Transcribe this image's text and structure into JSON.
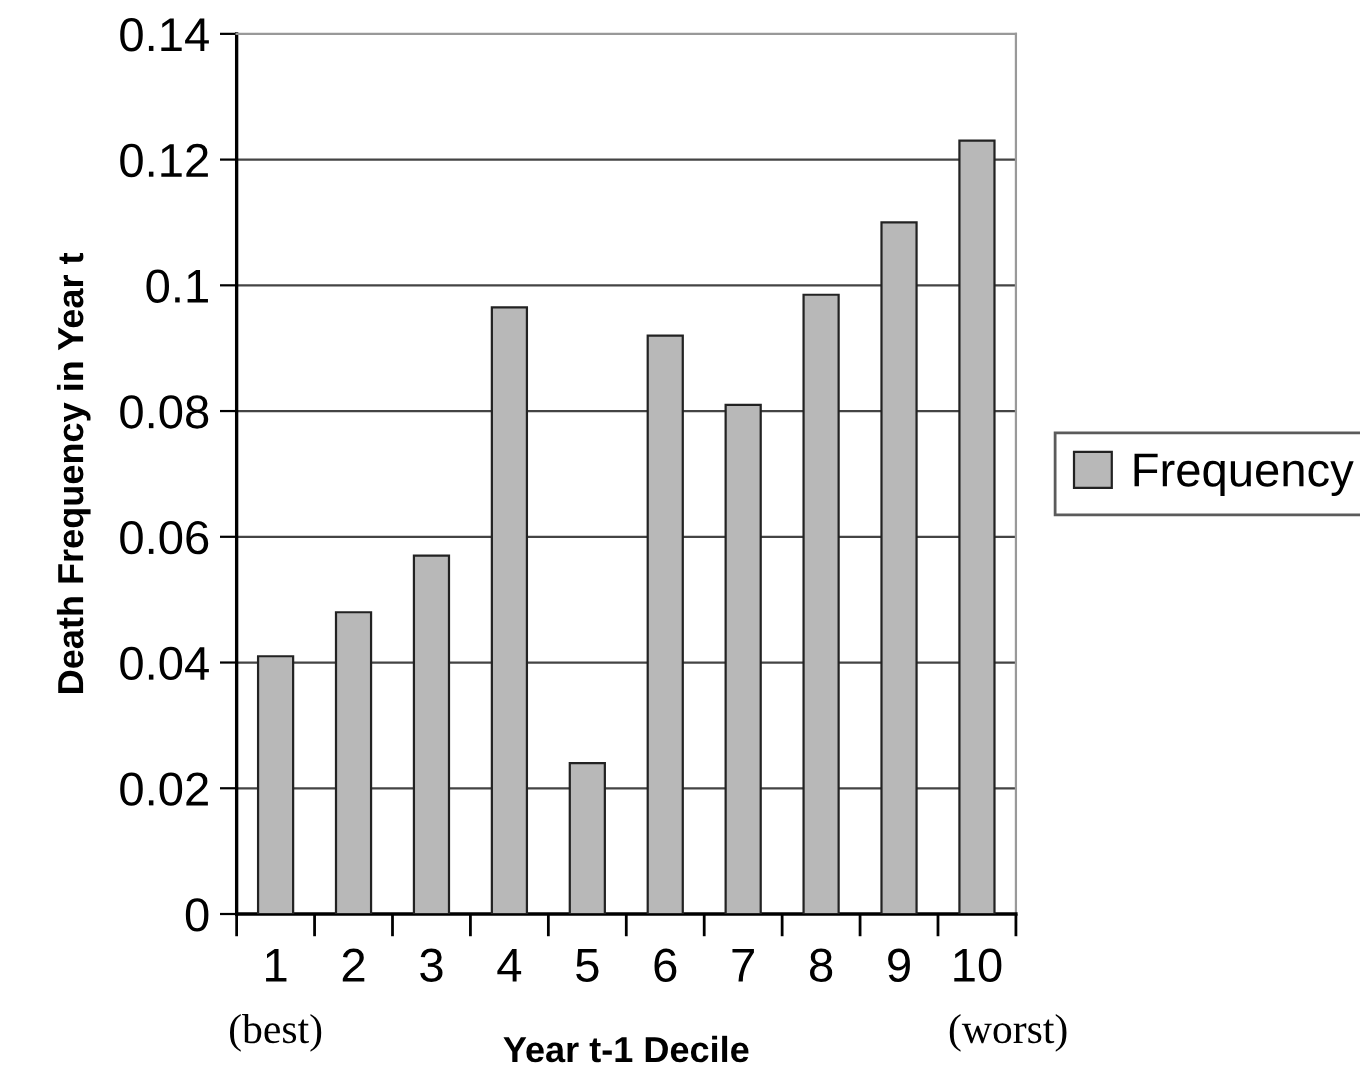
{
  "chart_data": {
    "type": "bar",
    "xlabel": "Year t-1 Decile",
    "ylabel": "Death Frequency in Year t",
    "categories": [
      "1",
      "2",
      "3",
      "4",
      "5",
      "6",
      "7",
      "8",
      "9",
      "10"
    ],
    "series": [
      {
        "name": "Frequency",
        "color": "#b8b8b8",
        "values": [
          0.041,
          0.048,
          0.057,
          0.0965,
          0.024,
          0.092,
          0.081,
          0.0985,
          0.11,
          0.123
        ]
      }
    ],
    "ylim": [
      0,
      0.14
    ],
    "yticks": [
      0,
      0.02,
      0.04,
      0.06,
      0.08,
      0.1,
      0.12,
      0.14
    ],
    "grid": "y",
    "legend": "right",
    "annotations": [
      "(best)",
      "(worst)"
    ]
  }
}
